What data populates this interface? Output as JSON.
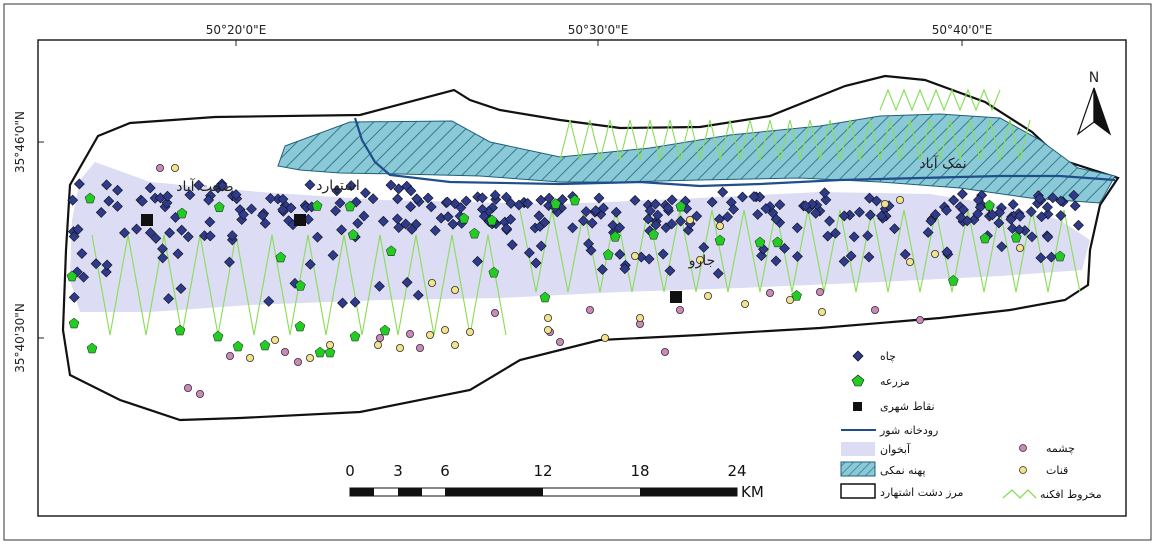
{
  "map": {
    "coords": {
      "lon": [
        "50°20'0\"E",
        "50°30'0\"E",
        "50°40'0\"E"
      ],
      "lat": [
        "35°46'0\"N",
        "35°40'30\"N"
      ]
    },
    "places": {
      "sohhatabad": "صحت آباد",
      "eshtehard": "اشتهارد",
      "namakabad": "نمک آباد",
      "jarv": "جارو"
    },
    "north_label": "N",
    "scale": {
      "ticks": [
        "0",
        "3",
        "6",
        "12",
        "18",
        "24"
      ],
      "unit": "KM"
    },
    "legend": {
      "well": "چاه",
      "farm": "مزرعه",
      "urban": "نقاط شهری",
      "river": "رودخانه شور",
      "aquifer": "آبخوان",
      "salt_plain": "پهنه نمکی",
      "boundary": "مرز دشت اشتهارد",
      "spring": "چشمه",
      "qanat": "قنات",
      "fan": "مخروط افکنه"
    },
    "colors": {
      "well": "#2e3a8c",
      "farm": "#22cc22",
      "spring": "#cc88bb",
      "qanat": "#f2e38a",
      "aquifer": "#dcdcf4",
      "salt_plain": "#8cc9d8",
      "river": "#1f4e8c",
      "fan": "#88dd55"
    }
  }
}
